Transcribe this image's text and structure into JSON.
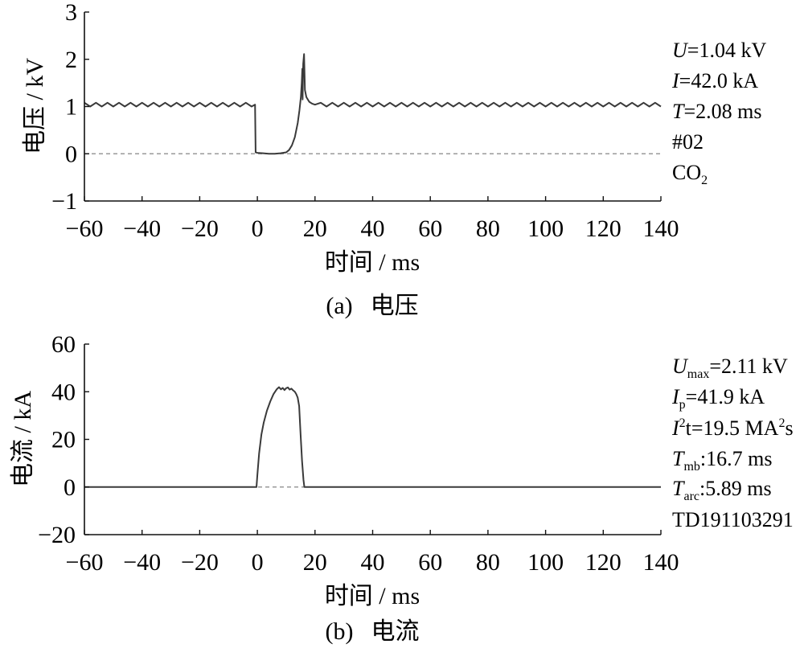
{
  "chart_data": [
    {
      "type": "line",
      "caption_label": "(a)",
      "caption_text": "电压",
      "xlabel": "时间 / ms",
      "ylabel": "电压 / kV",
      "xlim": [
        -60,
        140
      ],
      "ylim": [
        -1,
        3
      ],
      "xticks": [
        -60,
        -40,
        -20,
        0,
        20,
        40,
        60,
        80,
        100,
        120,
        140
      ],
      "xtick_labels": [
        "−60",
        "−40",
        "−20",
        "0",
        "20",
        "40",
        "60",
        "80",
        "100",
        "120",
        "140"
      ],
      "yticks": [
        3,
        2,
        1,
        0,
        -1
      ],
      "ytick_labels": [
        "3",
        "2",
        "1",
        "0",
        "−1"
      ],
      "grid": false,
      "reference_line": {
        "y": 0,
        "dashed": true
      },
      "series": [
        {
          "x": [
            -60,
            -58,
            -56,
            -54,
            -52,
            -50,
            -48,
            -46,
            -44,
            -42,
            -40,
            -38,
            -36,
            -34,
            -32,
            -30,
            -28,
            -26,
            -24,
            -22,
            -20,
            -18,
            -16,
            -14,
            -12,
            -10,
            -8,
            -6,
            -4,
            -2,
            -0.8,
            -0.6,
            0,
            2,
            4,
            6,
            8,
            10,
            11,
            12,
            13,
            14,
            14.6,
            15.1,
            15.4,
            15.6,
            15.7,
            15.9,
            16.2,
            16.5,
            17,
            18,
            19,
            20,
            22,
            24,
            26,
            28,
            30,
            32,
            34,
            36,
            38,
            40,
            42,
            44,
            46,
            48,
            50,
            52,
            54,
            56,
            58,
            60,
            62,
            64,
            66,
            68,
            70,
            72,
            74,
            76,
            78,
            80,
            82,
            84,
            86,
            88,
            90,
            92,
            94,
            96,
            98,
            100,
            102,
            104,
            106,
            108,
            110,
            112,
            114,
            116,
            118,
            120,
            122,
            124,
            126,
            128,
            130,
            132,
            134,
            136,
            138,
            140
          ],
          "y": [
            1.08,
            1.0,
            1.08,
            1.0,
            1.08,
            1.0,
            1.08,
            1.0,
            1.08,
            1.0,
            1.08,
            1.0,
            1.08,
            1.0,
            1.08,
            1.0,
            1.08,
            1.0,
            1.08,
            1.0,
            1.08,
            1.0,
            1.08,
            1.0,
            1.08,
            1.0,
            1.08,
            1.0,
            1.08,
            1.0,
            1.04,
            0.03,
            0.02,
            0.01,
            0.0,
            0.0,
            0.01,
            0.03,
            0.08,
            0.18,
            0.35,
            0.65,
            0.92,
            1.2,
            1.5,
            1.8,
            1.15,
            1.9,
            2.11,
            1.35,
            1.2,
            1.1,
            1.06,
            1.04,
            1.08,
            1.0,
            1.08,
            1.0,
            1.08,
            1.0,
            1.08,
            1.0,
            1.08,
            1.0,
            1.08,
            1.0,
            1.08,
            1.0,
            1.08,
            1.0,
            1.08,
            1.0,
            1.08,
            1.0,
            1.08,
            1.0,
            1.08,
            1.0,
            1.08,
            1.0,
            1.08,
            1.0,
            1.08,
            1.0,
            1.08,
            1.0,
            1.08,
            1.0,
            1.08,
            1.0,
            1.08,
            1.0,
            1.08,
            1.0,
            1.08,
            1.0,
            1.08,
            1.0,
            1.08,
            1.0,
            1.08,
            1.0,
            1.08,
            1.0,
            1.08,
            1.0,
            1.08,
            1.0,
            1.08,
            1.0,
            1.08,
            1.0,
            1.08,
            1.0
          ]
        }
      ],
      "annotations": [
        {
          "symbol": "U",
          "text": "=1.04 kV"
        },
        {
          "symbol": "I",
          "text": "=42.0 kA"
        },
        {
          "symbol": "T",
          "text": "=2.08 ms"
        },
        {
          "text": "#02"
        },
        {
          "text": "CO",
          "subscript": "2"
        }
      ]
    },
    {
      "type": "line",
      "caption_label": "(b)",
      "caption_text": "电流",
      "xlabel": "时间 / ms",
      "ylabel": "电流 / kA",
      "xlim": [
        -60,
        140
      ],
      "ylim": [
        -20,
        60
      ],
      "xticks": [
        -60,
        -40,
        -20,
        0,
        20,
        40,
        60,
        80,
        100,
        120,
        140
      ],
      "xtick_labels": [
        "−60",
        "−40",
        "−20",
        "0",
        "20",
        "40",
        "60",
        "80",
        "100",
        "120",
        "140"
      ],
      "yticks": [
        60,
        40,
        20,
        0,
        -20
      ],
      "ytick_labels": [
        "60",
        "40",
        "20",
        "0",
        "−20"
      ],
      "grid": false,
      "reference_line": {
        "y": 0,
        "dashed": true
      },
      "series": [
        {
          "x": [
            -60,
            -0.3,
            0,
            0.6,
            1.4,
            2.2,
            3.3,
            4.5,
            5.6,
            6.7,
            7.5,
            8.2,
            8.8,
            9.4,
            10,
            10.6,
            11.2,
            11.8,
            12.4,
            13,
            13.5,
            14,
            14.5,
            15,
            15.5,
            16,
            16.3,
            140
          ],
          "y": [
            0,
            0,
            5,
            14,
            22,
            27,
            32,
            36,
            39,
            41,
            41.9,
            41.0,
            41.6,
            40.7,
            41.5,
            41.8,
            40.9,
            41.3,
            40.6,
            40,
            39,
            37.5,
            34,
            22,
            11,
            3,
            0,
            0
          ]
        }
      ],
      "annotations": [
        {
          "symbol": "U",
          "subscript": "max",
          "text": "=2.11 kV"
        },
        {
          "symbol": "I",
          "subscript": "p",
          "text": "=41.9 kA"
        },
        {
          "symbol": "I",
          "superscript": "2",
          "text": "t=19.5 MA",
          "unit_superscript": "2",
          "unit_tail": "s"
        },
        {
          "symbol": "T",
          "subscript": "mb",
          "text": ":16.7 ms"
        },
        {
          "symbol": "T",
          "subscript": "arc",
          "text": ":5.89 ms"
        },
        {
          "text": "TD191103291"
        }
      ]
    }
  ],
  "colors": {
    "curve": "#3a3a3a",
    "reference_line": "#9a9a9a",
    "axis": "#111111",
    "background": "#ffffff"
  }
}
